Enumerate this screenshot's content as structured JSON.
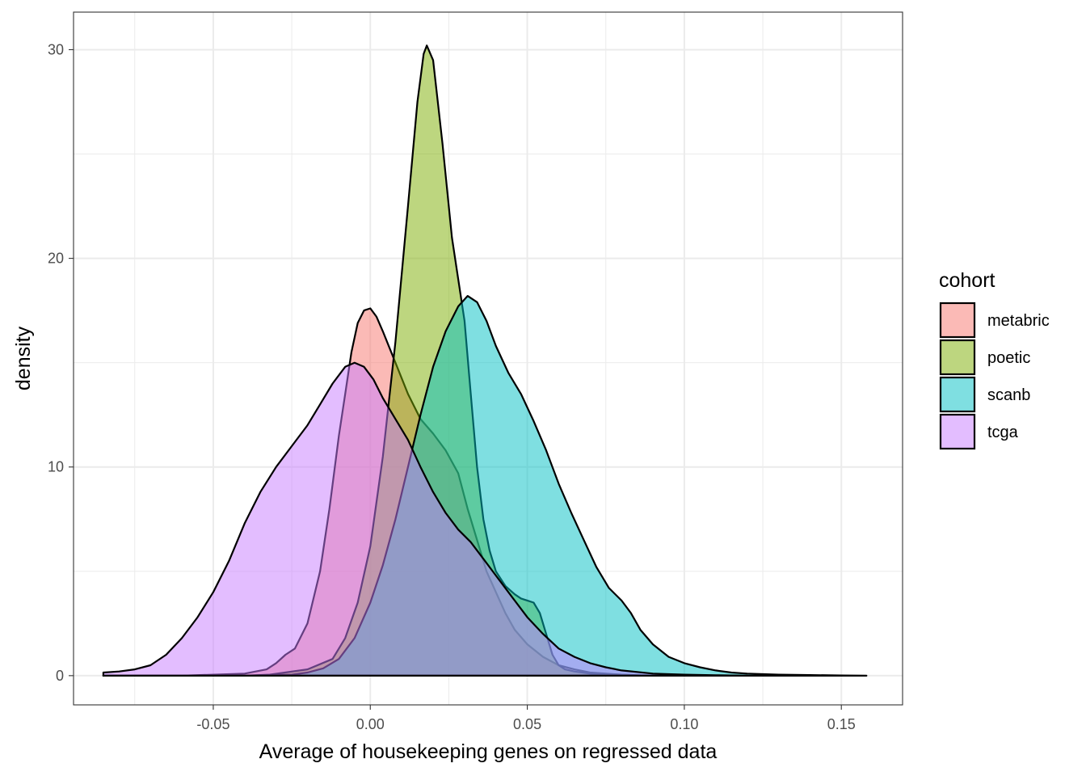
{
  "chart_data": {
    "type": "area",
    "subtype": "density",
    "title": "",
    "xlabel": "Average of housekeeping genes on regressed data",
    "ylabel": "density",
    "xlim": [
      -0.0945,
      0.1695
    ],
    "ylim": [
      -1.4,
      31.8
    ],
    "x_ticks": [
      -0.05,
      0.0,
      0.05,
      0.1,
      0.15
    ],
    "x_tick_labels": [
      "-0.05",
      "0.00",
      "0.05",
      "0.10",
      "0.15"
    ],
    "y_ticks": [
      0,
      10,
      20,
      30
    ],
    "y_tick_labels": [
      "0",
      "10",
      "20",
      "30"
    ],
    "x_minor_ticks": [
      -0.075,
      -0.025,
      0.025,
      0.075,
      0.125
    ],
    "y_minor_ticks": [
      5,
      15,
      25
    ],
    "grid": true,
    "legend": {
      "title": "cohort",
      "position": "right"
    },
    "series": [
      {
        "name": "metabric",
        "color": "#F8766D",
        "points": [
          [
            -0.085,
            0
          ],
          [
            -0.06,
            0
          ],
          [
            -0.04,
            0.1
          ],
          [
            -0.033,
            0.3
          ],
          [
            -0.03,
            0.6
          ],
          [
            -0.027,
            1.0
          ],
          [
            -0.024,
            1.3
          ],
          [
            -0.02,
            2.5
          ],
          [
            -0.016,
            5.0
          ],
          [
            -0.013,
            8.0
          ],
          [
            -0.01,
            11.5
          ],
          [
            -0.008,
            13.5
          ],
          [
            -0.006,
            15.5
          ],
          [
            -0.004,
            16.9
          ],
          [
            -0.002,
            17.5
          ],
          [
            0.0,
            17.6
          ],
          [
            0.002,
            17.2
          ],
          [
            0.004,
            16.5
          ],
          [
            0.008,
            15.0
          ],
          [
            0.012,
            13.5
          ],
          [
            0.016,
            12.3
          ],
          [
            0.02,
            11.6
          ],
          [
            0.024,
            10.8
          ],
          [
            0.028,
            9.7
          ],
          [
            0.031,
            8.0
          ],
          [
            0.034,
            6.5
          ],
          [
            0.037,
            5.0
          ],
          [
            0.04,
            4.0
          ],
          [
            0.043,
            3.0
          ],
          [
            0.046,
            2.2
          ],
          [
            0.05,
            1.5
          ],
          [
            0.055,
            0.9
          ],
          [
            0.06,
            0.5
          ],
          [
            0.065,
            0.3
          ],
          [
            0.07,
            0.15
          ],
          [
            0.08,
            0.05
          ],
          [
            0.09,
            0
          ]
        ]
      },
      {
        "name": "poetic",
        "color": "#7CAE00",
        "points": [
          [
            -0.085,
            0
          ],
          [
            -0.04,
            0
          ],
          [
            -0.032,
            0.05
          ],
          [
            -0.02,
            0.3
          ],
          [
            -0.012,
            0.8
          ],
          [
            -0.008,
            1.8
          ],
          [
            -0.004,
            3.5
          ],
          [
            0.0,
            6.2
          ],
          [
            0.004,
            10.5
          ],
          [
            0.008,
            16.0
          ],
          [
            0.012,
            22.5
          ],
          [
            0.015,
            27.5
          ],
          [
            0.017,
            29.8
          ],
          [
            0.018,
            30.2
          ],
          [
            0.02,
            29.5
          ],
          [
            0.023,
            25.5
          ],
          [
            0.026,
            21.0
          ],
          [
            0.028,
            19.0
          ],
          [
            0.03,
            17.0
          ],
          [
            0.032,
            13.5
          ],
          [
            0.034,
            10.0
          ],
          [
            0.036,
            7.5
          ],
          [
            0.038,
            6.0
          ],
          [
            0.04,
            5.0
          ],
          [
            0.043,
            4.3
          ],
          [
            0.046,
            3.9
          ],
          [
            0.048,
            3.7
          ],
          [
            0.05,
            3.6
          ],
          [
            0.052,
            3.5
          ],
          [
            0.054,
            3.0
          ],
          [
            0.056,
            2.0
          ],
          [
            0.058,
            1.0
          ],
          [
            0.06,
            0.5
          ],
          [
            0.062,
            0.3
          ],
          [
            0.065,
            0.2
          ],
          [
            0.07,
            0.1
          ],
          [
            0.075,
            0.05
          ],
          [
            0.08,
            0
          ]
        ]
      },
      {
        "name": "scanb",
        "color": "#00BFC4",
        "points": [
          [
            -0.085,
            0
          ],
          [
            -0.04,
            0
          ],
          [
            -0.025,
            0.05
          ],
          [
            -0.02,
            0.15
          ],
          [
            -0.015,
            0.35
          ],
          [
            -0.01,
            0.8
          ],
          [
            -0.005,
            1.8
          ],
          [
            0.0,
            3.5
          ],
          [
            0.004,
            5.3
          ],
          [
            0.008,
            7.5
          ],
          [
            0.012,
            10.0
          ],
          [
            0.016,
            12.5
          ],
          [
            0.02,
            14.8
          ],
          [
            0.024,
            16.5
          ],
          [
            0.028,
            17.7
          ],
          [
            0.031,
            18.2
          ],
          [
            0.034,
            17.9
          ],
          [
            0.037,
            17.0
          ],
          [
            0.04,
            15.8
          ],
          [
            0.044,
            14.5
          ],
          [
            0.048,
            13.5
          ],
          [
            0.052,
            12.2
          ],
          [
            0.056,
            10.8
          ],
          [
            0.06,
            9.2
          ],
          [
            0.064,
            7.8
          ],
          [
            0.068,
            6.5
          ],
          [
            0.072,
            5.2
          ],
          [
            0.076,
            4.2
          ],
          [
            0.08,
            3.6
          ],
          [
            0.083,
            3.0
          ],
          [
            0.086,
            2.2
          ],
          [
            0.09,
            1.5
          ],
          [
            0.095,
            0.9
          ],
          [
            0.1,
            0.6
          ],
          [
            0.105,
            0.4
          ],
          [
            0.11,
            0.25
          ],
          [
            0.115,
            0.15
          ],
          [
            0.12,
            0.1
          ],
          [
            0.13,
            0.05
          ],
          [
            0.14,
            0.03
          ],
          [
            0.15,
            0.01
          ],
          [
            0.158,
            0
          ]
        ]
      },
      {
        "name": "tcga",
        "color": "#C77CFF",
        "points": [
          [
            -0.085,
            0.15
          ],
          [
            -0.08,
            0.2
          ],
          [
            -0.075,
            0.3
          ],
          [
            -0.07,
            0.5
          ],
          [
            -0.065,
            1.0
          ],
          [
            -0.06,
            1.8
          ],
          [
            -0.055,
            2.8
          ],
          [
            -0.05,
            4.0
          ],
          [
            -0.045,
            5.5
          ],
          [
            -0.04,
            7.3
          ],
          [
            -0.035,
            8.8
          ],
          [
            -0.03,
            10.0
          ],
          [
            -0.025,
            11.0
          ],
          [
            -0.02,
            12.0
          ],
          [
            -0.016,
            13.0
          ],
          [
            -0.012,
            14.0
          ],
          [
            -0.008,
            14.8
          ],
          [
            -0.005,
            15.0
          ],
          [
            -0.002,
            14.8
          ],
          [
            0.001,
            14.2
          ],
          [
            0.004,
            13.3
          ],
          [
            0.008,
            12.3
          ],
          [
            0.012,
            11.3
          ],
          [
            0.016,
            10.0
          ],
          [
            0.02,
            8.8
          ],
          [
            0.024,
            7.8
          ],
          [
            0.028,
            7.0
          ],
          [
            0.032,
            6.4
          ],
          [
            0.036,
            5.6
          ],
          [
            0.04,
            4.8
          ],
          [
            0.045,
            3.8
          ],
          [
            0.05,
            2.8
          ],
          [
            0.055,
            2.0
          ],
          [
            0.06,
            1.3
          ],
          [
            0.065,
            0.9
          ],
          [
            0.07,
            0.6
          ],
          [
            0.075,
            0.4
          ],
          [
            0.08,
            0.25
          ],
          [
            0.09,
            0.1
          ],
          [
            0.1,
            0.05
          ],
          [
            0.11,
            0.02
          ],
          [
            0.12,
            0
          ]
        ]
      }
    ]
  }
}
